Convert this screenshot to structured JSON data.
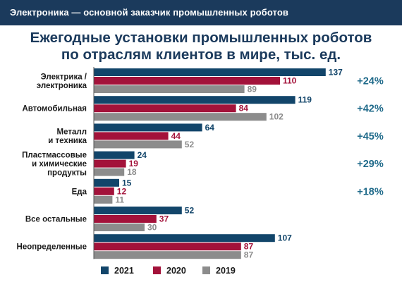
{
  "header": {
    "text": "Электроника — основной заказчик промышленных роботов"
  },
  "title": {
    "line1": "Ежегодные установки промышленных роботов",
    "line2": "по отраслям клиентов в мире, тыс. ед."
  },
  "colors": {
    "header_bg": "#1b3a5c",
    "title": "#1b3a5c",
    "growth": "#1f6a8a",
    "series_2021": "#12456a",
    "series_2020": "#a3123a",
    "series_2019": "#8c8c8c"
  },
  "chart_data": {
    "type": "bar",
    "orientation": "horizontal",
    "title": "Ежегодные установки промышленных роботов по отраслям клиентов в мире, тыс. ед.",
    "legend_position": "bottom",
    "grid": false,
    "categories": [
      [
        "Электрика /",
        "электроника"
      ],
      [
        "Автомобильная"
      ],
      [
        "Металл",
        "и техника"
      ],
      [
        "Пластмассовые",
        "и химические",
        "продукты"
      ],
      [
        "Еда"
      ],
      [
        "Все остальные"
      ],
      [
        "Неопределенные"
      ]
    ],
    "series": [
      {
        "name": "2021",
        "values": [
          137,
          119,
          64,
          24,
          15,
          52,
          107
        ]
      },
      {
        "name": "2020",
        "values": [
          110,
          84,
          44,
          19,
          12,
          37,
          87
        ]
      },
      {
        "name": "2019",
        "values": [
          89,
          102,
          52,
          18,
          11,
          30,
          87
        ]
      }
    ],
    "growth_labels": [
      "+24%",
      "+42%",
      "+45%",
      "+29%",
      "+18%",
      "",
      ""
    ]
  }
}
